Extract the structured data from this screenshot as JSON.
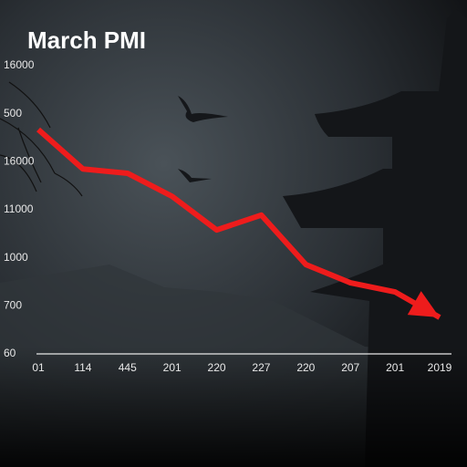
{
  "chart_data": {
    "type": "line",
    "title": "March PMI",
    "categories": [
      "01",
      "114",
      "445",
      "201",
      "220",
      "227",
      "220",
      "207",
      "201",
      "2019"
    ],
    "series": [
      {
        "name": "PMI",
        "color": "#ee1c1c",
        "values": [
          4.67,
          3.85,
          3.76,
          3.28,
          2.58,
          2.89,
          1.86,
          1.48,
          1.29,
          0.76
        ]
      }
    ],
    "ylim": [
      0,
      6
    ],
    "yticks": [
      {
        "value": 0,
        "label": "60"
      },
      {
        "value": 1,
        "label": "700"
      },
      {
        "value": 2,
        "label": "1000"
      },
      {
        "value": 3,
        "label": "11000"
      },
      {
        "value": 4,
        "label": "16000"
      },
      {
        "value": 5,
        "label": "500"
      },
      {
        "value": 6,
        "label": "16000"
      }
    ],
    "grid": false
  }
}
